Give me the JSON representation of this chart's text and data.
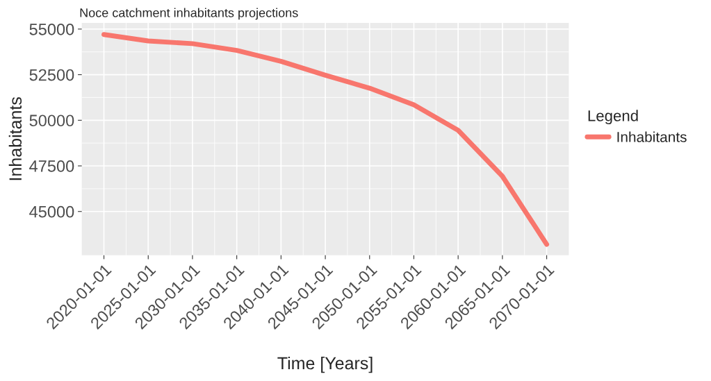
{
  "chart_data": {
    "type": "line",
    "title": "Noce catchment inhabitants projections",
    "xlabel": "Time [Years]",
    "ylabel": "Inhabitants",
    "legend_title": "Legend",
    "x": [
      "2020",
      "2025",
      "2030",
      "2035",
      "2040",
      "2045",
      "2050",
      "2055",
      "2060",
      "2065",
      "2070"
    ],
    "series": [
      {
        "name": "Inhabitants",
        "color": "#f8766d",
        "values": [
          54700,
          54350,
          54200,
          53830,
          53230,
          52470,
          51760,
          50850,
          49450,
          46930,
          43200
        ]
      }
    ],
    "xlim": [
      "2017-07-01",
      "2072-07-01"
    ],
    "ylim": [
      42600,
      55340
    ],
    "xticks": [
      {
        "value": "2020-01-01",
        "label": "2020-01-01"
      },
      {
        "value": "2025-01-01",
        "label": "2025-01-01"
      },
      {
        "value": "2030-01-01",
        "label": "2030-01-01"
      },
      {
        "value": "2035-01-01",
        "label": "2035-01-01"
      },
      {
        "value": "2040-01-01",
        "label": "2040-01-01"
      },
      {
        "value": "2045-01-01",
        "label": "2045-01-01"
      },
      {
        "value": "2050-01-01",
        "label": "2050-01-01"
      },
      {
        "value": "2055-01-01",
        "label": "2055-01-01"
      },
      {
        "value": "2060-01-01",
        "label": "2060-01-01"
      },
      {
        "value": "2065-01-01",
        "label": "2065-01-01"
      },
      {
        "value": "2070-01-01",
        "label": "2070-01-01"
      }
    ],
    "yticks": [
      45000,
      47500,
      50000,
      52500,
      55000
    ],
    "grid": true,
    "legend": "right",
    "line_style": "solid",
    "marker": "none"
  }
}
